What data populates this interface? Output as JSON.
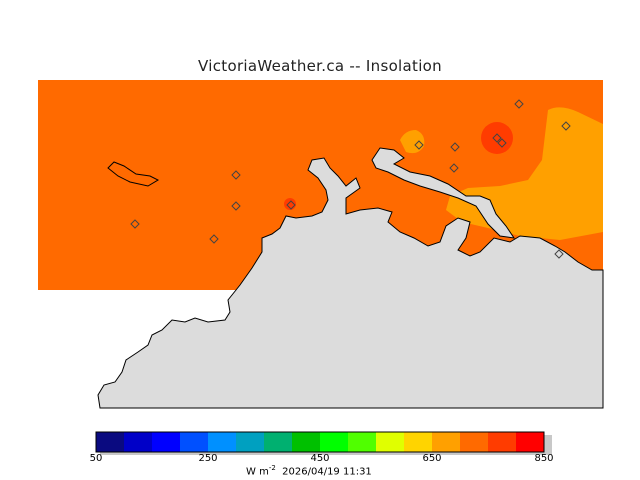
{
  "title": "VictoriaWeather.ca -- Insolation",
  "colorbar": {
    "colors": [
      "#0a0a80",
      "#0000c8",
      "#0000ff",
      "#0050ff",
      "#0090ff",
      "#00a0c0",
      "#00b070",
      "#00c000",
      "#00ff00",
      "#50ff00",
      "#e0ff00",
      "#ffd400",
      "#ffa000",
      "#ff6a00",
      "#ff3c00",
      "#ff0000"
    ],
    "ticks": [
      "50",
      "250",
      "450",
      "650",
      "850"
    ],
    "units_prefix": "W m",
    "units_exp": "-2",
    "timestamp": "2026/04/19 11:31"
  },
  "map": {
    "water_color": "#dcdcdc",
    "base_field_color": "#ff6a00",
    "warm_zone_color": "#ffa000",
    "hot_spot_color": "#ff3c00",
    "station_marker_color": "#ff3c00",
    "station_count": 12
  }
}
